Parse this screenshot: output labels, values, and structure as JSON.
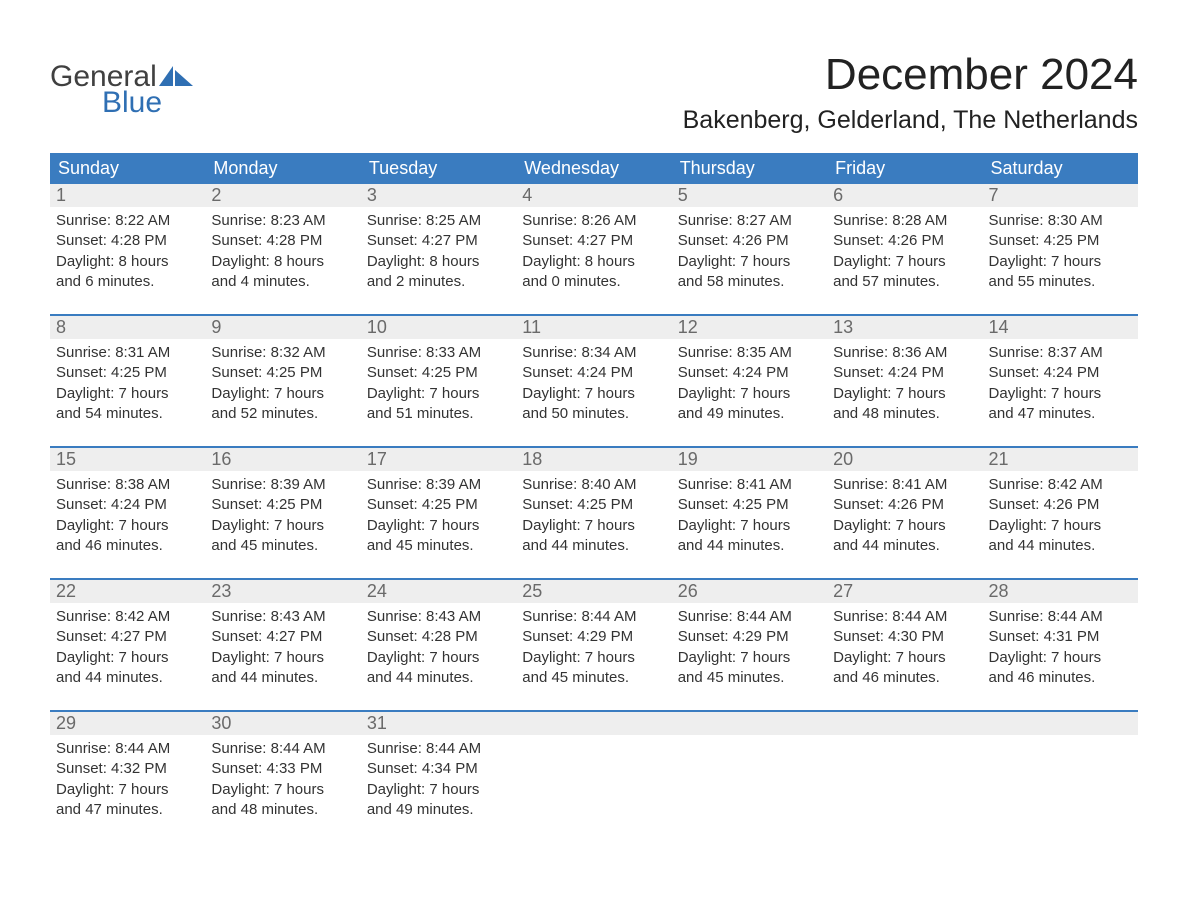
{
  "logo": {
    "word1": "General",
    "word2": "Blue"
  },
  "title": "December 2024",
  "location": "Bakenberg, Gelderland, The Netherlands",
  "colors": {
    "header_bg": "#3a7cc0",
    "header_text": "#ffffff",
    "daynum_bg": "#eeeeee",
    "daynum_text": "#6a6a6a",
    "rule": "#3a7cc0",
    "logo_gray": "#404040",
    "logo_blue": "#2f6fb3",
    "body_text": "#333333",
    "page_bg": "#ffffff"
  },
  "typography": {
    "title_fontsize": 44,
    "location_fontsize": 25,
    "dayheader_fontsize": 18,
    "daynum_fontsize": 18,
    "body_fontsize": 15
  },
  "day_headers": [
    "Sunday",
    "Monday",
    "Tuesday",
    "Wednesday",
    "Thursday",
    "Friday",
    "Saturday"
  ],
  "weeks": [
    [
      {
        "n": "1",
        "sunrise": "Sunrise: 8:22 AM",
        "sunset": "Sunset: 4:28 PM",
        "d1": "Daylight: 8 hours",
        "d2": "and 6 minutes."
      },
      {
        "n": "2",
        "sunrise": "Sunrise: 8:23 AM",
        "sunset": "Sunset: 4:28 PM",
        "d1": "Daylight: 8 hours",
        "d2": "and 4 minutes."
      },
      {
        "n": "3",
        "sunrise": "Sunrise: 8:25 AM",
        "sunset": "Sunset: 4:27 PM",
        "d1": "Daylight: 8 hours",
        "d2": "and 2 minutes."
      },
      {
        "n": "4",
        "sunrise": "Sunrise: 8:26 AM",
        "sunset": "Sunset: 4:27 PM",
        "d1": "Daylight: 8 hours",
        "d2": "and 0 minutes."
      },
      {
        "n": "5",
        "sunrise": "Sunrise: 8:27 AM",
        "sunset": "Sunset: 4:26 PM",
        "d1": "Daylight: 7 hours",
        "d2": "and 58 minutes."
      },
      {
        "n": "6",
        "sunrise": "Sunrise: 8:28 AM",
        "sunset": "Sunset: 4:26 PM",
        "d1": "Daylight: 7 hours",
        "d2": "and 57 minutes."
      },
      {
        "n": "7",
        "sunrise": "Sunrise: 8:30 AM",
        "sunset": "Sunset: 4:25 PM",
        "d1": "Daylight: 7 hours",
        "d2": "and 55 minutes."
      }
    ],
    [
      {
        "n": "8",
        "sunrise": "Sunrise: 8:31 AM",
        "sunset": "Sunset: 4:25 PM",
        "d1": "Daylight: 7 hours",
        "d2": "and 54 minutes."
      },
      {
        "n": "9",
        "sunrise": "Sunrise: 8:32 AM",
        "sunset": "Sunset: 4:25 PM",
        "d1": "Daylight: 7 hours",
        "d2": "and 52 minutes."
      },
      {
        "n": "10",
        "sunrise": "Sunrise: 8:33 AM",
        "sunset": "Sunset: 4:25 PM",
        "d1": "Daylight: 7 hours",
        "d2": "and 51 minutes."
      },
      {
        "n": "11",
        "sunrise": "Sunrise: 8:34 AM",
        "sunset": "Sunset: 4:24 PM",
        "d1": "Daylight: 7 hours",
        "d2": "and 50 minutes."
      },
      {
        "n": "12",
        "sunrise": "Sunrise: 8:35 AM",
        "sunset": "Sunset: 4:24 PM",
        "d1": "Daylight: 7 hours",
        "d2": "and 49 minutes."
      },
      {
        "n": "13",
        "sunrise": "Sunrise: 8:36 AM",
        "sunset": "Sunset: 4:24 PM",
        "d1": "Daylight: 7 hours",
        "d2": "and 48 minutes."
      },
      {
        "n": "14",
        "sunrise": "Sunrise: 8:37 AM",
        "sunset": "Sunset: 4:24 PM",
        "d1": "Daylight: 7 hours",
        "d2": "and 47 minutes."
      }
    ],
    [
      {
        "n": "15",
        "sunrise": "Sunrise: 8:38 AM",
        "sunset": "Sunset: 4:24 PM",
        "d1": "Daylight: 7 hours",
        "d2": "and 46 minutes."
      },
      {
        "n": "16",
        "sunrise": "Sunrise: 8:39 AM",
        "sunset": "Sunset: 4:25 PM",
        "d1": "Daylight: 7 hours",
        "d2": "and 45 minutes."
      },
      {
        "n": "17",
        "sunrise": "Sunrise: 8:39 AM",
        "sunset": "Sunset: 4:25 PM",
        "d1": "Daylight: 7 hours",
        "d2": "and 45 minutes."
      },
      {
        "n": "18",
        "sunrise": "Sunrise: 8:40 AM",
        "sunset": "Sunset: 4:25 PM",
        "d1": "Daylight: 7 hours",
        "d2": "and 44 minutes."
      },
      {
        "n": "19",
        "sunrise": "Sunrise: 8:41 AM",
        "sunset": "Sunset: 4:25 PM",
        "d1": "Daylight: 7 hours",
        "d2": "and 44 minutes."
      },
      {
        "n": "20",
        "sunrise": "Sunrise: 8:41 AM",
        "sunset": "Sunset: 4:26 PM",
        "d1": "Daylight: 7 hours",
        "d2": "and 44 minutes."
      },
      {
        "n": "21",
        "sunrise": "Sunrise: 8:42 AM",
        "sunset": "Sunset: 4:26 PM",
        "d1": "Daylight: 7 hours",
        "d2": "and 44 minutes."
      }
    ],
    [
      {
        "n": "22",
        "sunrise": "Sunrise: 8:42 AM",
        "sunset": "Sunset: 4:27 PM",
        "d1": "Daylight: 7 hours",
        "d2": "and 44 minutes."
      },
      {
        "n": "23",
        "sunrise": "Sunrise: 8:43 AM",
        "sunset": "Sunset: 4:27 PM",
        "d1": "Daylight: 7 hours",
        "d2": "and 44 minutes."
      },
      {
        "n": "24",
        "sunrise": "Sunrise: 8:43 AM",
        "sunset": "Sunset: 4:28 PM",
        "d1": "Daylight: 7 hours",
        "d2": "and 44 minutes."
      },
      {
        "n": "25",
        "sunrise": "Sunrise: 8:44 AM",
        "sunset": "Sunset: 4:29 PM",
        "d1": "Daylight: 7 hours",
        "d2": "and 45 minutes."
      },
      {
        "n": "26",
        "sunrise": "Sunrise: 8:44 AM",
        "sunset": "Sunset: 4:29 PM",
        "d1": "Daylight: 7 hours",
        "d2": "and 45 minutes."
      },
      {
        "n": "27",
        "sunrise": "Sunrise: 8:44 AM",
        "sunset": "Sunset: 4:30 PM",
        "d1": "Daylight: 7 hours",
        "d2": "and 46 minutes."
      },
      {
        "n": "28",
        "sunrise": "Sunrise: 8:44 AM",
        "sunset": "Sunset: 4:31 PM",
        "d1": "Daylight: 7 hours",
        "d2": "and 46 minutes."
      }
    ],
    [
      {
        "n": "29",
        "sunrise": "Sunrise: 8:44 AM",
        "sunset": "Sunset: 4:32 PM",
        "d1": "Daylight: 7 hours",
        "d2": "and 47 minutes."
      },
      {
        "n": "30",
        "sunrise": "Sunrise: 8:44 AM",
        "sunset": "Sunset: 4:33 PM",
        "d1": "Daylight: 7 hours",
        "d2": "and 48 minutes."
      },
      {
        "n": "31",
        "sunrise": "Sunrise: 8:44 AM",
        "sunset": "Sunset: 4:34 PM",
        "d1": "Daylight: 7 hours",
        "d2": "and 49 minutes."
      },
      {
        "empty": true
      },
      {
        "empty": true
      },
      {
        "empty": true
      },
      {
        "empty": true
      }
    ]
  ]
}
